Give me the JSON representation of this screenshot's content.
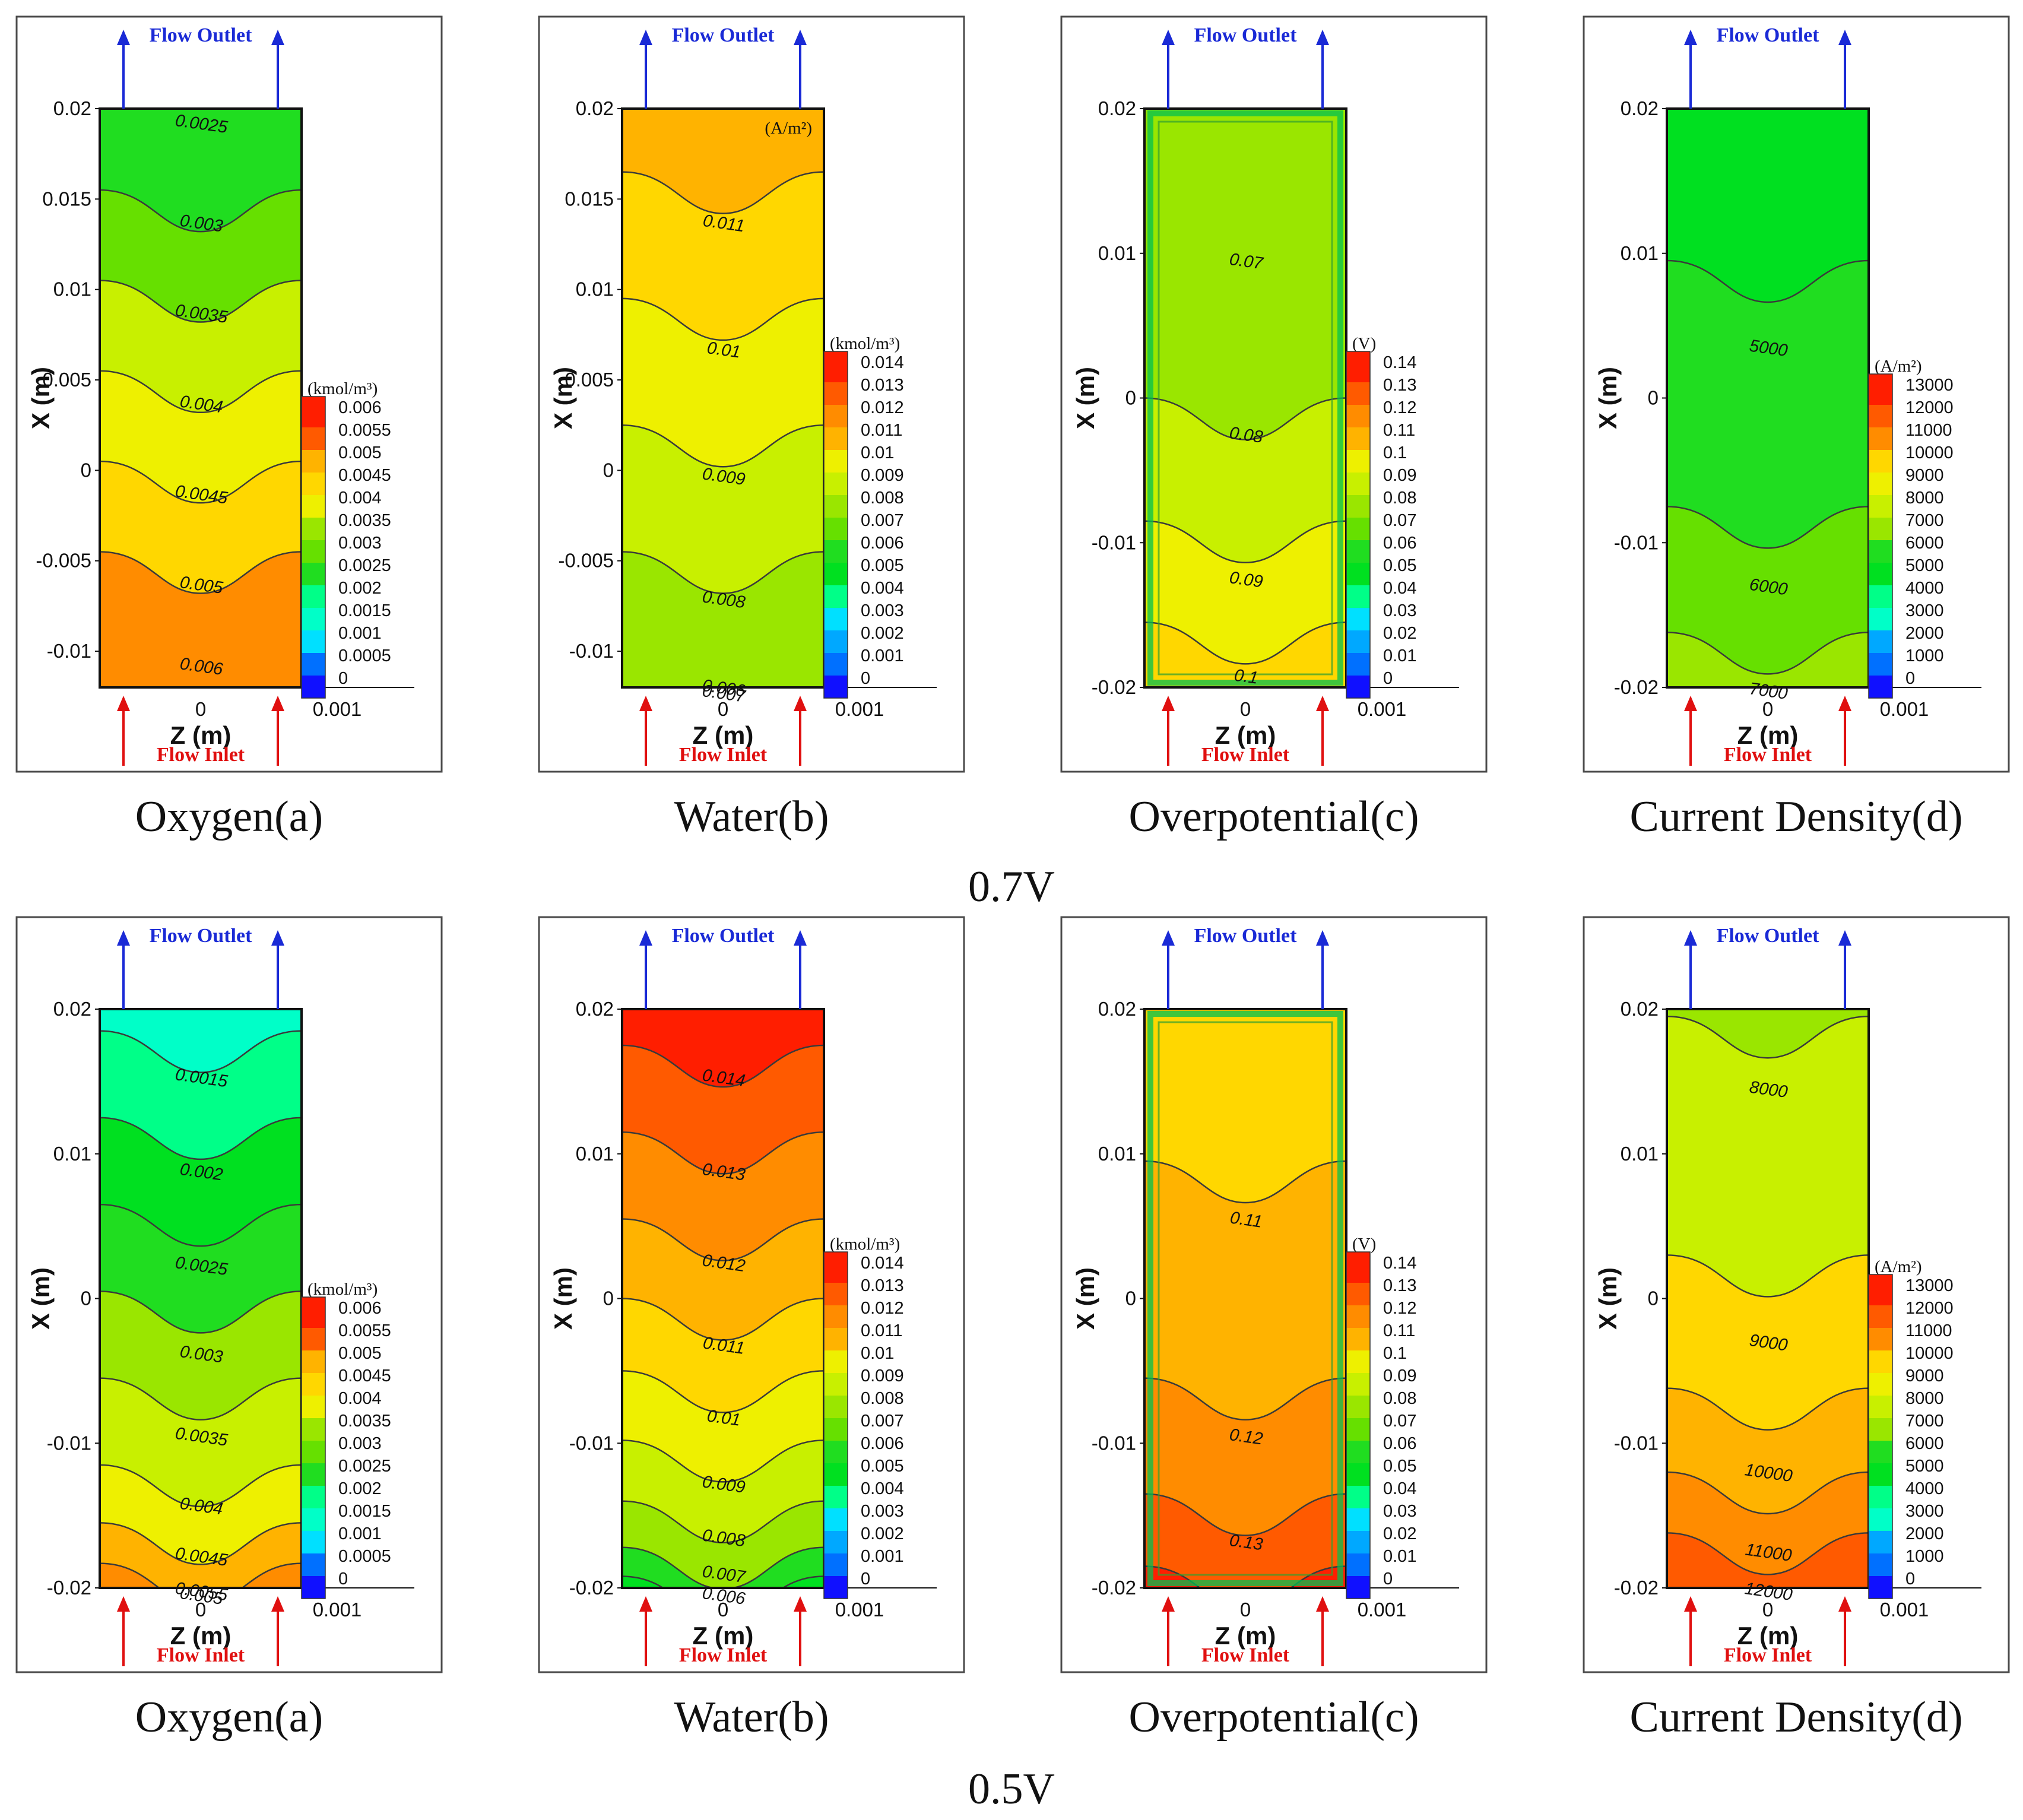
{
  "colors": {
    "scale": [
      "#1010ff",
      "#0070ff",
      "#00a8ff",
      "#00e0ff",
      "#00ffc8",
      "#00ff88",
      "#00e020",
      "#20dd20",
      "#66e000",
      "#9ae600",
      "#c8f000",
      "#eef000",
      "#ffd700",
      "#ffb300",
      "#ff8c00",
      "#ff5a00",
      "#ff1e00"
    ],
    "flow_outlet": "#1a2ad6",
    "flow_inlet": "#e01010"
  },
  "flow": {
    "outlet": "Flow Outlet",
    "inlet": "Flow Inlet"
  },
  "voltages": [
    "0.7V",
    "0.5V"
  ],
  "chart_data": [
    {
      "type": "contour",
      "voltage": "0.7V",
      "caption": "Oxygen(a)",
      "xlabel": "Z (m)",
      "ylabel": "X (m)",
      "x_ticks": [
        "0",
        "0.001"
      ],
      "y_ticks": [
        {
          "v": 0.02,
          "t": "0.02"
        },
        {
          "v": 0.015,
          "t": "0.015"
        },
        {
          "v": 0.01,
          "t": "0.01"
        },
        {
          "v": 0.005,
          "t": "0.005"
        },
        {
          "v": 0,
          "t": "0"
        },
        {
          "v": -0.005,
          "t": "-0.005"
        },
        {
          "v": -0.01,
          "t": "-0.01"
        }
      ],
      "ylim": [
        -0.012,
        0.02
      ],
      "legend": {
        "unit": "(kmol/m³)",
        "labels": [
          "0.006",
          "0.0055",
          "0.005",
          "0.0045",
          "0.004",
          "0.0035",
          "0.003",
          "0.0025",
          "0.002",
          "0.0015",
          "0.001",
          "0.0005",
          "0"
        ]
      },
      "contours": [
        {
          "label": "0.0025",
          "y": 0.02
        },
        {
          "label": "0.003",
          "y": 0.0145
        },
        {
          "label": "0.0035",
          "y": 0.0095
        },
        {
          "label": "0.004",
          "y": 0.0045
        },
        {
          "label": "0.0045",
          "y": -0.0005
        },
        {
          "label": "0.005",
          "y": -0.0055
        },
        {
          "label": "0.006",
          "y": -0.01
        }
      ],
      "bands": [
        {
          "from": 0.02,
          "to": 0.0155,
          "level": 0.0026
        },
        {
          "from": 0.0155,
          "to": 0.0105,
          "level": 0.0031
        },
        {
          "from": 0.0105,
          "to": 0.0055,
          "level": 0.0036
        },
        {
          "from": 0.0055,
          "to": 0.0005,
          "level": 0.0041
        },
        {
          "from": 0.0005,
          "to": -0.0045,
          "level": 0.0046
        },
        {
          "from": -0.0045,
          "to": -0.012,
          "level": 0.0051
        }
      ]
    },
    {
      "type": "contour",
      "voltage": "0.7V",
      "caption": "Water(b)",
      "xlabel": "Z (m)",
      "ylabel": "X (m)",
      "x_ticks": [
        "0",
        "0.001"
      ],
      "y_ticks": [
        {
          "v": 0.02,
          "t": "0.02"
        },
        {
          "v": 0.015,
          "t": "0.015"
        },
        {
          "v": 0.01,
          "t": "0.01"
        },
        {
          "v": 0.005,
          "t": "0.005"
        },
        {
          "v": 0,
          "t": "0"
        },
        {
          "v": -0.005,
          "t": "-0.005"
        },
        {
          "v": -0.01,
          "t": "-0.01"
        }
      ],
      "ylim": [
        -0.012,
        0.02
      ],
      "top_unit": "(A/m²)",
      "legend": {
        "unit": "(kmol/m³)",
        "labels": [
          "0.014",
          "0.013",
          "0.012",
          "0.011",
          "0.01",
          "0.009",
          "0.008",
          "0.007",
          "0.006",
          "0.005",
          "0.004",
          "0.003",
          "0.002",
          "0.001",
          "0"
        ]
      },
      "contours": [
        {
          "label": "0.011",
          "y": 0.0145
        },
        {
          "label": "0.01",
          "y": 0.0075
        },
        {
          "label": "0.009",
          "y": 0.0005
        },
        {
          "label": "0.008",
          "y": -0.0063
        },
        {
          "label": "0.007",
          "y": -0.0115
        },
        {
          "label": "0.006",
          "y": -0.0112
        }
      ],
      "bands": [
        {
          "from": 0.02,
          "to": 0.0165,
          "level": 0.0115
        },
        {
          "from": 0.0165,
          "to": 0.0095,
          "level": 0.0105
        },
        {
          "from": 0.0095,
          "to": 0.0025,
          "level": 0.0095
        },
        {
          "from": 0.0025,
          "to": -0.0045,
          "level": 0.0085
        },
        {
          "from": -0.0045,
          "to": -0.012,
          "level": 0.0075
        }
      ]
    },
    {
      "type": "contour",
      "voltage": "0.7V",
      "caption": "Overpotential(c)",
      "xlabel": "Z (m)",
      "ylabel": "X (m)",
      "x_ticks": [
        "0",
        "0.001"
      ],
      "y_ticks": [
        {
          "v": 0.02,
          "t": "0.02"
        },
        {
          "v": 0.01,
          "t": "0.01"
        },
        {
          "v": 0,
          "t": "0"
        },
        {
          "v": -0.01,
          "t": "-0.01"
        },
        {
          "v": -0.02,
          "t": "-0.02"
        }
      ],
      "ylim": [
        -0.02,
        0.02
      ],
      "legend": {
        "unit": "(V)",
        "labels": [
          "0.14",
          "0.13",
          "0.12",
          "0.11",
          "0.1",
          "0.09",
          "0.08",
          "0.07",
          "0.06",
          "0.05",
          "0.04",
          "0.03",
          "0.02",
          "0.01",
          "0"
        ]
      },
      "contours": [
        {
          "label": "0.07",
          "y": 0.0105
        },
        {
          "label": "0.08",
          "y": -0.0015
        },
        {
          "label": "0.09",
          "y": -0.0115
        },
        {
          "label": "0.1",
          "y": -0.0182
        }
      ],
      "bands": [
        {
          "from": 0.02,
          "to": 0.0,
          "level": 0.075
        },
        {
          "from": 0.0,
          "to": -0.0085,
          "level": 0.085
        },
        {
          "from": -0.0085,
          "to": -0.0155,
          "level": 0.095
        },
        {
          "from": -0.0155,
          "to": -0.02,
          "level": 0.105
        }
      ],
      "frame_edge": true
    },
    {
      "type": "contour",
      "voltage": "0.7V",
      "caption": "Current Density(d)",
      "xlabel": "Z (m)",
      "ylabel": "X (m)",
      "x_ticks": [
        "0",
        "0.001"
      ],
      "y_ticks": [
        {
          "v": 0.02,
          "t": "0.02"
        },
        {
          "v": 0.01,
          "t": "0.01"
        },
        {
          "v": 0,
          "t": "0"
        },
        {
          "v": -0.01,
          "t": "-0.01"
        },
        {
          "v": -0.02,
          "t": "-0.02"
        }
      ],
      "ylim": [
        -0.02,
        0.02
      ],
      "legend": {
        "unit": "(A/m²)",
        "labels": [
          "13000",
          "12000",
          "11000",
          "10000",
          "9000",
          "8000",
          "7000",
          "6000",
          "5000",
          "4000",
          "3000",
          "2000",
          "1000",
          "0"
        ]
      },
      "contours": [
        {
          "label": "5000",
          "y": 0.0045
        },
        {
          "label": "6000",
          "y": -0.012
        },
        {
          "label": "7000",
          "y": -0.0192
        }
      ],
      "bands": [
        {
          "from": 0.02,
          "to": 0.0095,
          "level": 4500
        },
        {
          "from": 0.0095,
          "to": -0.0075,
          "level": 5500
        },
        {
          "from": -0.0075,
          "to": -0.0162,
          "level": 6500
        },
        {
          "from": -0.0162,
          "to": -0.02,
          "level": 7500
        }
      ]
    },
    {
      "type": "contour",
      "voltage": "0.5V",
      "caption": "Oxygen(a)",
      "xlabel": "Z (m)",
      "ylabel": "X (m)",
      "x_ticks": [
        "0",
        "0.001"
      ],
      "y_ticks": [
        {
          "v": 0.02,
          "t": "0.02"
        },
        {
          "v": 0.01,
          "t": "0.01"
        },
        {
          "v": 0,
          "t": "0"
        },
        {
          "v": -0.01,
          "t": "-0.01"
        },
        {
          "v": -0.02,
          "t": "-0.02"
        }
      ],
      "ylim": [
        -0.02,
        0.02
      ],
      "legend": {
        "unit": "(kmol/m³)",
        "labels": [
          "0.006",
          "0.0055",
          "0.005",
          "0.0045",
          "0.004",
          "0.0035",
          "0.003",
          "0.0025",
          "0.002",
          "0.0015",
          "0.001",
          "0.0005",
          "0"
        ]
      },
      "contours": [
        {
          "label": "0.0015",
          "y": 0.0163
        },
        {
          "label": "0.002",
          "y": 0.0098
        },
        {
          "label": "0.0025",
          "y": 0.0033
        },
        {
          "label": "0.003",
          "y": -0.0028
        },
        {
          "label": "0.0035",
          "y": -0.0085
        },
        {
          "label": "0.004",
          "y": -0.0133
        },
        {
          "label": "0.0045",
          "y": -0.0168
        },
        {
          "label": "0.005",
          "y": -0.0195
        },
        {
          "label": "0.0055",
          "y": -0.0192
        }
      ],
      "bands": [
        {
          "from": 0.02,
          "to": 0.0185,
          "level": 0.0014
        },
        {
          "from": 0.0185,
          "to": 0.0125,
          "level": 0.0018
        },
        {
          "from": 0.0125,
          "to": 0.0065,
          "level": 0.0023
        },
        {
          "from": 0.0065,
          "to": 0.0005,
          "level": 0.0028
        },
        {
          "from": 0.0005,
          "to": -0.0055,
          "level": 0.0033
        },
        {
          "from": -0.0055,
          "to": -0.0115,
          "level": 0.0038
        },
        {
          "from": -0.0115,
          "to": -0.0155,
          "level": 0.0043
        },
        {
          "from": -0.0155,
          "to": -0.0183,
          "level": 0.0048
        },
        {
          "from": -0.0183,
          "to": -0.02,
          "level": 0.0053
        }
      ]
    },
    {
      "type": "contour",
      "voltage": "0.5V",
      "caption": "Water(b)",
      "xlabel": "Z (m)",
      "ylabel": "X (m)",
      "x_ticks": [
        "0",
        "0.001"
      ],
      "y_ticks": [
        {
          "v": 0.02,
          "t": "0.02"
        },
        {
          "v": 0.01,
          "t": "0.01"
        },
        {
          "v": 0,
          "t": "0"
        },
        {
          "v": -0.01,
          "t": "-0.01"
        },
        {
          "v": -0.02,
          "t": "-0.02"
        }
      ],
      "ylim": [
        -0.02,
        0.02
      ],
      "legend": {
        "unit": "(kmol/m³)",
        "labels": [
          "0.014",
          "0.013",
          "0.012",
          "0.011",
          "0.01",
          "0.009",
          "0.008",
          "0.007",
          "0.006",
          "0.005",
          "0.004",
          "0.003",
          "0.002",
          "0.001",
          "0"
        ]
      },
      "contours": [
        {
          "label": "0.014",
          "y": 0.0163
        },
        {
          "label": "0.013",
          "y": 0.0098
        },
        {
          "label": "0.012",
          "y": 0.0035
        },
        {
          "label": "0.011",
          "y": -0.0022
        },
        {
          "label": "0.01",
          "y": -0.0072
        },
        {
          "label": "0.009",
          "y": -0.0118
        },
        {
          "label": "0.008",
          "y": -0.0155
        },
        {
          "label": "0.007",
          "y": -0.018
        },
        {
          "label": "0.006",
          "y": -0.0195
        }
      ],
      "bands": [
        {
          "from": 0.02,
          "to": 0.0175,
          "level": 0.0145
        },
        {
          "from": 0.0175,
          "to": 0.0115,
          "level": 0.0135
        },
        {
          "from": 0.0115,
          "to": 0.0055,
          "level": 0.0125
        },
        {
          "from": 0.0055,
          "to": 0.0,
          "level": 0.0115
        },
        {
          "from": 0.0,
          "to": -0.005,
          "level": 0.0105
        },
        {
          "from": -0.005,
          "to": -0.0098,
          "level": 0.0095
        },
        {
          "from": -0.0098,
          "to": -0.014,
          "level": 0.0085
        },
        {
          "from": -0.014,
          "to": -0.0172,
          "level": 0.0075
        },
        {
          "from": -0.0172,
          "to": -0.0192,
          "level": 0.0065
        },
        {
          "from": -0.0192,
          "to": -0.02,
          "level": 0.0055
        }
      ]
    },
    {
      "type": "contour",
      "voltage": "0.5V",
      "caption": "Overpotential(c)",
      "xlabel": "Z (m)",
      "ylabel": "X (m)",
      "x_ticks": [
        "0",
        "0.001"
      ],
      "y_ticks": [
        {
          "v": 0.02,
          "t": "0.02"
        },
        {
          "v": 0.01,
          "t": "0.01"
        },
        {
          "v": 0,
          "t": "0"
        },
        {
          "v": -0.01,
          "t": "-0.01"
        },
        {
          "v": -0.02,
          "t": "-0.02"
        }
      ],
      "ylim": [
        -0.02,
        0.02
      ],
      "legend": {
        "unit": "(V)",
        "labels": [
          "0.14",
          "0.13",
          "0.12",
          "0.11",
          "0.1",
          "0.09",
          "0.08",
          "0.07",
          "0.06",
          "0.05",
          "0.04",
          "0.03",
          "0.02",
          "0.01",
          "0"
        ]
      },
      "contours": [
        {
          "label": "0.11",
          "y": 0.0065
        },
        {
          "label": "0.12",
          "y": -0.0085
        },
        {
          "label": "0.13",
          "y": -0.0158
        }
      ],
      "bands": [
        {
          "from": 0.02,
          "to": 0.0095,
          "level": 0.105
        },
        {
          "from": 0.0095,
          "to": -0.0055,
          "level": 0.115
        },
        {
          "from": -0.0055,
          "to": -0.0135,
          "level": 0.125
        },
        {
          "from": -0.0135,
          "to": -0.0185,
          "level": 0.135
        },
        {
          "from": -0.0185,
          "to": -0.02,
          "level": 0.14
        }
      ],
      "frame_edge": true
    },
    {
      "type": "contour",
      "voltage": "0.5V",
      "caption": "Current Density(d)",
      "xlabel": "Z (m)",
      "ylabel": "X (m)",
      "x_ticks": [
        "0",
        "0.001"
      ],
      "y_ticks": [
        {
          "v": 0.02,
          "t": "0.02"
        },
        {
          "v": 0.01,
          "t": "0.01"
        },
        {
          "v": 0,
          "t": "0"
        },
        {
          "v": -0.01,
          "t": "-0.01"
        },
        {
          "v": -0.02,
          "t": "-0.02"
        }
      ],
      "ylim": [
        -0.02,
        0.02
      ],
      "legend": {
        "unit": "(A/m²)",
        "labels": [
          "13000",
          "12000",
          "11000",
          "10000",
          "9000",
          "8000",
          "7000",
          "6000",
          "5000",
          "4000",
          "3000",
          "2000",
          "1000",
          "0"
        ]
      },
      "contours": [
        {
          "label": "8000",
          "y": 0.0155
        },
        {
          "label": "9000",
          "y": -0.002
        },
        {
          "label": "10000",
          "y": -0.011
        },
        {
          "label": "11000",
          "y": -0.0165
        },
        {
          "label": "12000",
          "y": -0.0192
        }
      ],
      "bands": [
        {
          "from": 0.02,
          "to": 0.0195,
          "level": 7500
        },
        {
          "from": 0.0195,
          "to": 0.003,
          "level": 8500
        },
        {
          "from": 0.003,
          "to": -0.0062,
          "level": 9500
        },
        {
          "from": -0.0062,
          "to": -0.012,
          "level": 10500
        },
        {
          "from": -0.012,
          "to": -0.0162,
          "level": 11500
        },
        {
          "from": -0.0162,
          "to": -0.02,
          "level": 12500
        }
      ]
    }
  ]
}
